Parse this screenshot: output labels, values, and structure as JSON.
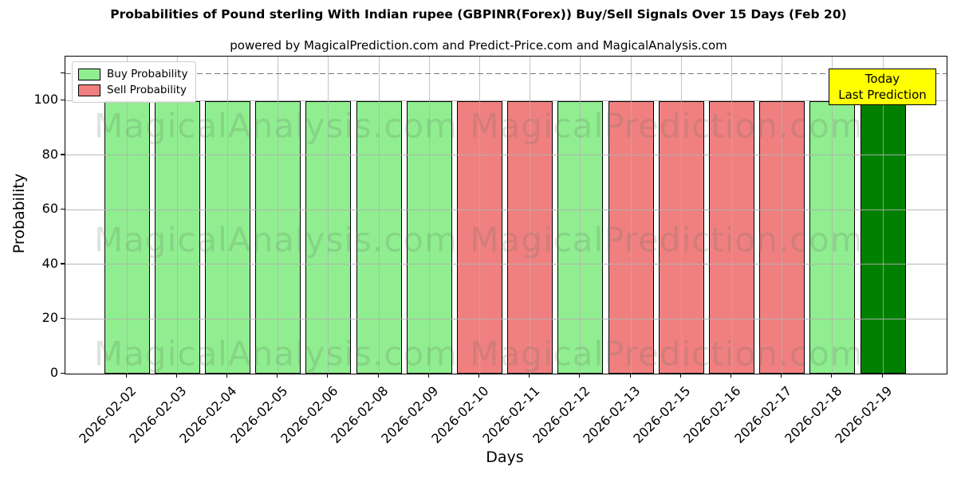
{
  "chart_data": {
    "type": "bar",
    "title": "Probabilities of Pound sterling With Indian rupee (GBPINR(Forex)) Buy/Sell Signals Over 15 Days (Feb 20)",
    "subtitle": "powered by MagicalPrediction.com and Predict-Price.com and MagicalAnalysis.com",
    "xlabel": "Days",
    "ylabel": "Probability",
    "ylim": [
      0,
      116
    ],
    "yticks": [
      0,
      20,
      40,
      60,
      80,
      100
    ],
    "grid": true,
    "dashed_reference_line_y": 110,
    "legend": {
      "position": "upper-left",
      "entries": [
        {
          "label": "Buy Probability",
          "color": "#90EE90"
        },
        {
          "label": "Sell Probability",
          "color": "#F08080"
        }
      ]
    },
    "categories": [
      "2026-02-02",
      "2026-02-03",
      "2026-02-04",
      "2026-02-05",
      "2026-02-06",
      "2026-02-08",
      "2026-02-09",
      "2026-02-10",
      "2026-02-11",
      "2026-02-12",
      "2026-02-13",
      "2026-02-15",
      "2026-02-16",
      "2026-02-17",
      "2026-02-18",
      "2026-02-19"
    ],
    "series": [
      {
        "name": "Buy Probability",
        "color": "#90EE90",
        "values": [
          100,
          100,
          100,
          100,
          100,
          100,
          100,
          0,
          0,
          100,
          0,
          0,
          0,
          0,
          100,
          0
        ]
      },
      {
        "name": "Sell Probability",
        "color": "#F08080",
        "values": [
          0,
          0,
          0,
          0,
          0,
          0,
          0,
          100,
          100,
          0,
          100,
          100,
          100,
          100,
          0,
          0
        ]
      },
      {
        "name": "Today Last Prediction",
        "color": "#008000",
        "values": [
          0,
          0,
          0,
          0,
          0,
          0,
          0,
          0,
          0,
          0,
          0,
          0,
          0,
          0,
          0,
          100
        ]
      }
    ],
    "bars": [
      {
        "date": "2026-02-02",
        "value": 100,
        "signal": "buy",
        "color": "#90EE90"
      },
      {
        "date": "2026-02-03",
        "value": 100,
        "signal": "buy",
        "color": "#90EE90"
      },
      {
        "date": "2026-02-04",
        "value": 100,
        "signal": "buy",
        "color": "#90EE90"
      },
      {
        "date": "2026-02-05",
        "value": 100,
        "signal": "buy",
        "color": "#90EE90"
      },
      {
        "date": "2026-02-06",
        "value": 100,
        "signal": "buy",
        "color": "#90EE90"
      },
      {
        "date": "2026-02-08",
        "value": 100,
        "signal": "buy",
        "color": "#90EE90"
      },
      {
        "date": "2026-02-09",
        "value": 100,
        "signal": "buy",
        "color": "#90EE90"
      },
      {
        "date": "2026-02-10",
        "value": 100,
        "signal": "sell",
        "color": "#F08080"
      },
      {
        "date": "2026-02-11",
        "value": 100,
        "signal": "sell",
        "color": "#F08080"
      },
      {
        "date": "2026-02-12",
        "value": 100,
        "signal": "buy",
        "color": "#90EE90"
      },
      {
        "date": "2026-02-13",
        "value": 100,
        "signal": "sell",
        "color": "#F08080"
      },
      {
        "date": "2026-02-15",
        "value": 100,
        "signal": "sell",
        "color": "#F08080"
      },
      {
        "date": "2026-02-16",
        "value": 100,
        "signal": "sell",
        "color": "#F08080"
      },
      {
        "date": "2026-02-17",
        "value": 100,
        "signal": "sell",
        "color": "#F08080"
      },
      {
        "date": "2026-02-18",
        "value": 100,
        "signal": "buy",
        "color": "#90EE90"
      },
      {
        "date": "2026-02-19",
        "value": 100,
        "signal": "today",
        "color": "#008000"
      }
    ],
    "annotation": {
      "lines": [
        "Today",
        "Last Prediction"
      ],
      "background": "#FFFF00",
      "border": "#000000"
    },
    "watermarks": [
      "MagicalAnalysis.com",
      "MagicalPrediction.com"
    ],
    "colors": {
      "buy": "#90EE90",
      "sell": "#F08080",
      "today": "#008000",
      "grid": "#b0b0b0",
      "dashed_line": "#7a7a7a",
      "annotation_bg": "#FFFF00"
    }
  }
}
